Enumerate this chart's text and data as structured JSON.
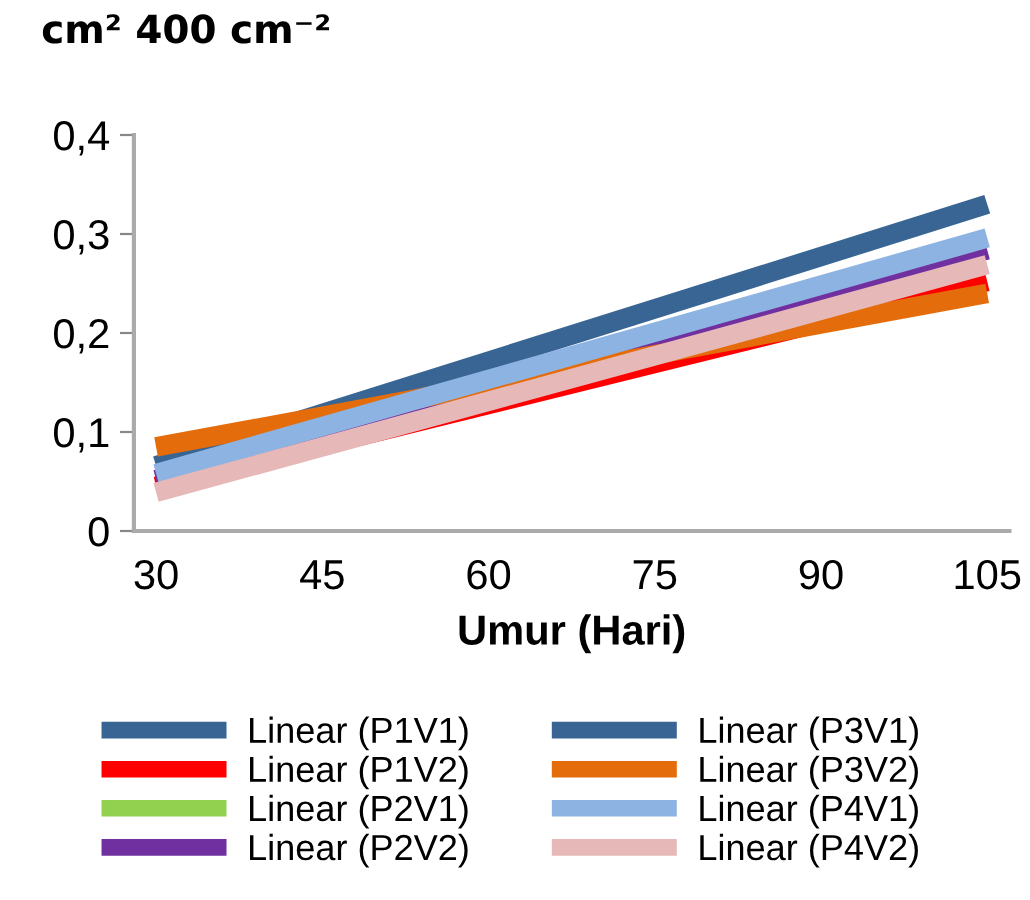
{
  "chart_data": {
    "type": "line",
    "xlabel": "Umur (Hari)",
    "ylabel": "cm² 400 cm⁻²",
    "x": [
      30,
      105
    ],
    "xlim": [
      28,
      107
    ],
    "xticks": [
      30,
      45,
      60,
      75,
      90,
      105
    ],
    "ylim": [
      0,
      0.4
    ],
    "yticks": [
      {
        "value": 0,
        "label": "0"
      },
      {
        "value": 0.1,
        "label": "0,1"
      },
      {
        "value": 0.2,
        "label": "0,2"
      },
      {
        "value": 0.3,
        "label": "0,3"
      },
      {
        "value": 0.4,
        "label": "0,4"
      }
    ],
    "grid": false,
    "legend": "bottom",
    "marker": "none",
    "line_style": "solid",
    "series": [
      {
        "name": "Linear (P1V1)",
        "color": "#386594",
        "values": [
          null,
          null
        ]
      },
      {
        "name": "Linear (P1V2)",
        "color": "#ff0000",
        "values": [
          0.045,
          0.252
        ]
      },
      {
        "name": "Linear (P2V1)",
        "color": "#92d050",
        "values": [
          null,
          null
        ]
      },
      {
        "name": "Linear (P2V2)",
        "color": "#7030a0",
        "values": [
          0.052,
          0.284
        ]
      },
      {
        "name": "Linear (P3V1)",
        "color": "#386594",
        "values": [
          0.066,
          0.33
        ]
      },
      {
        "name": "Linear (P3V2)",
        "color": "#e46c0a",
        "values": [
          0.085,
          0.24
        ]
      },
      {
        "name": "Linear (P4V1)",
        "color": "#8db3e2",
        "values": [
          0.058,
          0.296
        ]
      },
      {
        "name": "Linear (P4V2)",
        "color": "#e6b9b8",
        "values": [
          0.039,
          0.269
        ]
      }
    ]
  }
}
